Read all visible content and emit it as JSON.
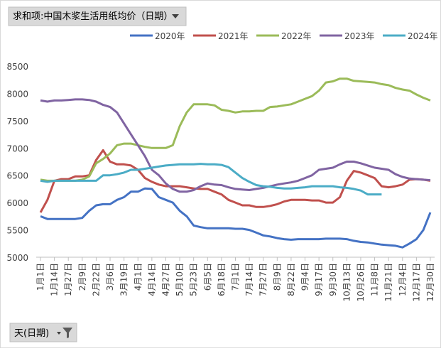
{
  "chart_data": {
    "type": "line",
    "field_button": "求和项:中国木浆生活用纸均价（日期）",
    "axis_button": "天(日期)",
    "categories": [
      "1月1日",
      null,
      "1月14日",
      null,
      "1月27日",
      null,
      "2月9日",
      null,
      "2月22日",
      null,
      "3月6日",
      null,
      "3月19日",
      null,
      "4月1日",
      null,
      "4月14日",
      null,
      "4月27日",
      null,
      "5月10日",
      null,
      "5月23日",
      null,
      "6月5日",
      null,
      "6月18日",
      null,
      "7月1日",
      null,
      "7月14日",
      null,
      "7月27日",
      null,
      "8月9日",
      null,
      "8月22日",
      null,
      "9月4日",
      null,
      "9月17日",
      null,
      "9月30日",
      null,
      "10月13日",
      null,
      "10月26日",
      null,
      "11月8日",
      null,
      "11月21日",
      null,
      "12月4日",
      null,
      "12月17日",
      null,
      "12月30日"
    ],
    "series": [
      {
        "name": "2020年",
        "color": "#4472c4",
        "values": [
          5750,
          5700,
          5700,
          5700,
          5700,
          5700,
          5720,
          5850,
          5950,
          5970,
          5970,
          6050,
          6100,
          6200,
          6200,
          6260,
          6250,
          6100,
          6050,
          6000,
          5850,
          5750,
          5580,
          5550,
          5530,
          5530,
          5530,
          5530,
          5520,
          5520,
          5500,
          5450,
          5400,
          5380,
          5350,
          5330,
          5320,
          5330,
          5330,
          5330,
          5330,
          5340,
          5340,
          5340,
          5330,
          5300,
          5280,
          5270,
          5250,
          5230,
          5220,
          5210,
          5180,
          5250,
          5330,
          5500,
          5820
        ]
      },
      {
        "name": "2021年",
        "color": "#c0504d",
        "values": [
          5820,
          6050,
          6400,
          6430,
          6430,
          6480,
          6480,
          6500,
          6780,
          6960,
          6750,
          6700,
          6700,
          6680,
          6600,
          6450,
          6380,
          6330,
          6300,
          6300,
          6300,
          6280,
          6260,
          6250,
          6250,
          6200,
          6150,
          6050,
          6000,
          5950,
          5950,
          5920,
          5920,
          5940,
          5970,
          6020,
          6050,
          6050,
          6050,
          6040,
          6040,
          6000,
          6000,
          6100,
          6400,
          6580,
          6550,
          6500,
          6450,
          6300,
          6280,
          6300,
          6330,
          6420,
          6430,
          6420,
          6400
        ]
      },
      {
        "name": "2022年",
        "color": "#9bbb59",
        "values": [
          6420,
          6400,
          6400,
          6400,
          6400,
          6400,
          6420,
          6480,
          6720,
          6800,
          6900,
          7050,
          7080,
          7080,
          7050,
          7020,
          7000,
          7000,
          7000,
          7050,
          7400,
          7650,
          7800,
          7800,
          7800,
          7780,
          7700,
          7680,
          7650,
          7670,
          7670,
          7680,
          7680,
          7750,
          7760,
          7780,
          7800,
          7850,
          7900,
          7950,
          8050,
          8200,
          8220,
          8270,
          8270,
          8230,
          8220,
          8210,
          8200,
          8170,
          8150,
          8100,
          8070,
          8050,
          7980,
          7920,
          7870
        ]
      },
      {
        "name": "2023年",
        "color": "#8064a2",
        "values": [
          7870,
          7850,
          7870,
          7870,
          7880,
          7890,
          7890,
          7880,
          7850,
          7790,
          7750,
          7650,
          7450,
          7250,
          7050,
          6850,
          6600,
          6500,
          6350,
          6250,
          6200,
          6200,
          6230,
          6300,
          6350,
          6330,
          6320,
          6280,
          6250,
          6240,
          6230,
          6250,
          6270,
          6300,
          6330,
          6350,
          6370,
          6400,
          6450,
          6500,
          6600,
          6620,
          6640,
          6700,
          6750,
          6750,
          6720,
          6680,
          6640,
          6620,
          6600,
          6520,
          6470,
          6440,
          6430,
          6420,
          6410
        ]
      },
      {
        "name": "2024年",
        "color": "#4bacc6",
        "values": [
          6400,
          6380,
          6400,
          6400,
          6400,
          6400,
          6400,
          6400,
          6400,
          6500,
          6500,
          6520,
          6550,
          6600,
          6600,
          6620,
          6640,
          6660,
          6680,
          6690,
          6700,
          6700,
          6700,
          6710,
          6700,
          6700,
          6690,
          6650,
          6550,
          6450,
          6380,
          6320,
          6300,
          6290,
          6270,
          6260,
          6260,
          6270,
          6280,
          6300,
          6300,
          6300,
          6300,
          6280,
          6270,
          6250,
          6220,
          6150,
          6150,
          6150,
          null,
          null,
          null,
          null,
          null,
          null,
          null
        ]
      }
    ],
    "ylim": [
      5000,
      8500
    ],
    "yticks": [
      5000,
      5500,
      6000,
      6500,
      7000,
      7500,
      8000,
      8500
    ],
    "grid": false,
    "legend": "top"
  }
}
